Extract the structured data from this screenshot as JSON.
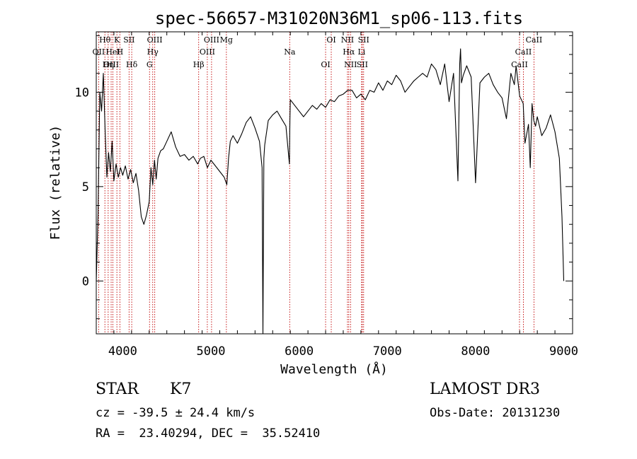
{
  "chart_data": {
    "type": "line",
    "title": "spec-56657-M31020N36M1_sp06-113.fits",
    "xlabel": "Wavelength (Å)",
    "ylabel": "Flux (relative)",
    "xlim": [
      3700,
      9100
    ],
    "ylim": [
      -2.8,
      13.2
    ],
    "xticks": [
      4000,
      5000,
      6000,
      7000,
      8000,
      9000
    ],
    "xtick_labels": [
      "4000",
      "5000",
      "6000",
      "7000",
      "8000",
      "9000"
    ],
    "yticks": [
      0,
      5,
      10
    ],
    "ytick_labels": [
      "0",
      "5",
      "10"
    ],
    "grid": false,
    "legend": "none",
    "series": [
      {
        "name": "flux",
        "x": [
          3700,
          3720,
          3740,
          3760,
          3780,
          3800,
          3820,
          3840,
          3860,
          3880,
          3900,
          3925,
          3950,
          3975,
          4000,
          4030,
          4060,
          4090,
          4120,
          4150,
          4180,
          4210,
          4240,
          4270,
          4300,
          4320,
          4340,
          4360,
          4380,
          4400,
          4430,
          4460,
          4500,
          4550,
          4600,
          4650,
          4700,
          4750,
          4800,
          4850,
          4880,
          4920,
          4960,
          5000,
          5050,
          5100,
          5150,
          5180,
          5200,
          5220,
          5250,
          5300,
          5350,
          5400,
          5450,
          5500,
          5550,
          5580,
          5590,
          5600,
          5610,
          5650,
          5700,
          5750,
          5800,
          5850,
          5890,
          5895,
          5900,
          5950,
          6000,
          6050,
          6100,
          6150,
          6200,
          6250,
          6300,
          6350,
          6400,
          6450,
          6500,
          6550,
          6600,
          6650,
          6700,
          6750,
          6800,
          6850,
          6900,
          6950,
          7000,
          7050,
          7100,
          7150,
          7200,
          7250,
          7300,
          7350,
          7400,
          7450,
          7500,
          7550,
          7600,
          7650,
          7700,
          7750,
          7800,
          7820,
          7830,
          7840,
          7860,
          7900,
          7950,
          8000,
          8050,
          8100,
          8150,
          8200,
          8250,
          8300,
          8350,
          8400,
          8440,
          8460,
          8500,
          8540,
          8560,
          8600,
          8620,
          8640,
          8660,
          8680,
          8700,
          8750,
          8800,
          8850,
          8900,
          8950,
          8980,
          9000
        ],
        "y": [
          0.0,
          3.5,
          10.0,
          9.0,
          11.0,
          8.0,
          5.5,
          6.8,
          5.8,
          7.4,
          5.3,
          6.2,
          5.5,
          6.0,
          5.6,
          6.1,
          5.4,
          5.9,
          5.2,
          5.7,
          4.8,
          3.4,
          3.0,
          3.5,
          4.2,
          6.0,
          5.1,
          6.4,
          5.4,
          6.5,
          6.9,
          7.0,
          7.4,
          7.9,
          7.1,
          6.6,
          6.7,
          6.4,
          6.6,
          6.2,
          6.5,
          6.6,
          6.0,
          6.4,
          6.1,
          5.8,
          5.5,
          5.1,
          6.5,
          7.4,
          7.7,
          7.3,
          7.8,
          8.4,
          8.7,
          8.1,
          7.4,
          6.0,
          -2.8,
          6.5,
          7.2,
          8.5,
          8.8,
          9.0,
          8.6,
          8.2,
          6.2,
          8.5,
          9.6,
          9.3,
          9.0,
          8.7,
          9.0,
          9.3,
          9.1,
          9.4,
          9.2,
          9.6,
          9.5,
          9.8,
          9.9,
          10.1,
          10.1,
          9.7,
          9.9,
          9.6,
          10.1,
          10.0,
          10.5,
          10.1,
          10.6,
          10.4,
          10.9,
          10.6,
          10.0,
          10.3,
          10.6,
          10.8,
          11.0,
          10.8,
          11.5,
          11.2,
          10.4,
          11.5,
          9.5,
          11.0,
          5.3,
          11.5,
          12.3,
          10.5,
          10.9,
          11.4,
          10.8,
          5.2,
          10.5,
          10.8,
          11.0,
          10.4,
          10.0,
          9.7,
          8.6,
          11.0,
          10.4,
          11.4,
          9.8,
          9.4,
          7.3,
          8.3,
          6.0,
          9.4,
          8.5,
          8.2,
          8.7,
          7.7,
          8.1,
          8.8,
          7.9,
          6.5,
          3.4,
          0.0
        ]
      }
    ],
    "lines": [
      {
        "label": "Hθ",
        "x": 3798
      },
      {
        "label": "OII",
        "x": 3727
      },
      {
        "label": "OIII",
        "x": 3869
      },
      {
        "label": "K",
        "x": 3934
      },
      {
        "label": "HeI",
        "x": 3889
      },
      {
        "label": "Hη",
        "x": 3835
      },
      {
        "label": "SII",
        "x": 4072
      },
      {
        "label": "H",
        "x": 3968
      },
      {
        "label": "Hδ",
        "x": 4102
      },
      {
        "label": "OIII",
        "x": 4363
      },
      {
        "label": "Hγ",
        "x": 4340
      },
      {
        "label": "G",
        "x": 4304
      },
      {
        "label": "OIII",
        "x": 5007
      },
      {
        "label": "OIII",
        "x": 4959
      },
      {
        "label": "Hβ",
        "x": 4861
      },
      {
        "label": "Mg",
        "x": 5175
      },
      {
        "label": "Na",
        "x": 5893
      },
      {
        "label": "OI",
        "x": 6300
      },
      {
        "label": "OI",
        "x": 6364
      },
      {
        "label": "Hα",
        "x": 6563
      },
      {
        "label": "SII",
        "x": 6716
      },
      {
        "label": "NII",
        "x": 6548
      },
      {
        "label": "Li",
        "x": 6708
      },
      {
        "label": "NII",
        "x": 6583
      },
      {
        "label": "SII",
        "x": 6731
      },
      {
        "label": "CaII",
        "x": 8542
      },
      {
        "label": "CaII",
        "x": 8498
      },
      {
        "label": "CaII",
        "x": 8662
      }
    ]
  },
  "info": {
    "object_class": "STAR",
    "subclass": "K7",
    "survey": "LAMOST DR3",
    "velocity": "cz = -39.5 ± 24.4 km/s",
    "obs_date": "Obs-Date: 20131230",
    "coords": "RA =  23.40294, DEC =  35.52410"
  },
  "colors": {
    "spectrum": "#000000",
    "line_marker": "#c00000",
    "axes": "#000000",
    "background": "#ffffff"
  }
}
